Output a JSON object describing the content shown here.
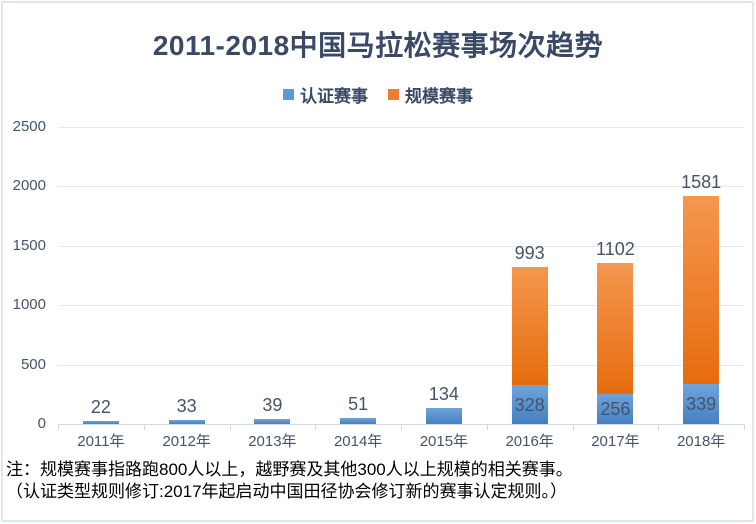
{
  "title": {
    "text": "2011-2018中国马拉松赛事场次趋势"
  },
  "legend": {
    "items": [
      {
        "label": "认证赛事",
        "color": "#5B9BD5"
      },
      {
        "label": "规模赛事",
        "color": "#ED7D31"
      }
    ]
  },
  "chart_data": {
    "type": "bar",
    "stacked": true,
    "title": "2011-2018中国马拉松赛事场次趋势",
    "categories": [
      "2011年",
      "2012年",
      "2013年",
      "2014年",
      "2015年",
      "2016年",
      "2017年",
      "2018年"
    ],
    "series": [
      {
        "name": "认证赛事",
        "color": "#5B9BD5",
        "values": [
          22,
          33,
          39,
          51,
          134,
          328,
          256,
          339
        ]
      },
      {
        "name": "规模赛事",
        "color": "#ED7D31",
        "values": [
          0,
          0,
          0,
          0,
          0,
          993,
          1102,
          1581
        ]
      }
    ],
    "ylim": [
      0,
      2500
    ],
    "yticks": [
      0,
      500,
      1000,
      1500,
      2000,
      2500
    ],
    "grid": true,
    "legend_position": "top",
    "xlabel": "",
    "ylabel": ""
  },
  "note": {
    "line1": "注：规模赛事指路跑800人以上，越野赛及其他300人以上规模的相关赛事。",
    "line2": "（认证类型规则修订:2017年起启动中国田径协会修订新的赛事认定规则。）"
  },
  "colors": {
    "title": "#3A4A66",
    "axis_label": "#44546A",
    "data_label": "#44546A",
    "gridline": "#E6E9EF",
    "axis_line": "#D3D8E1",
    "border": "#E2E5EC",
    "bar_blue_top": "#6EA4DA",
    "bar_blue_bottom": "#4580C2",
    "bar_orange_top": "#F4974F",
    "bar_orange_bottom": "#E66C0D"
  }
}
